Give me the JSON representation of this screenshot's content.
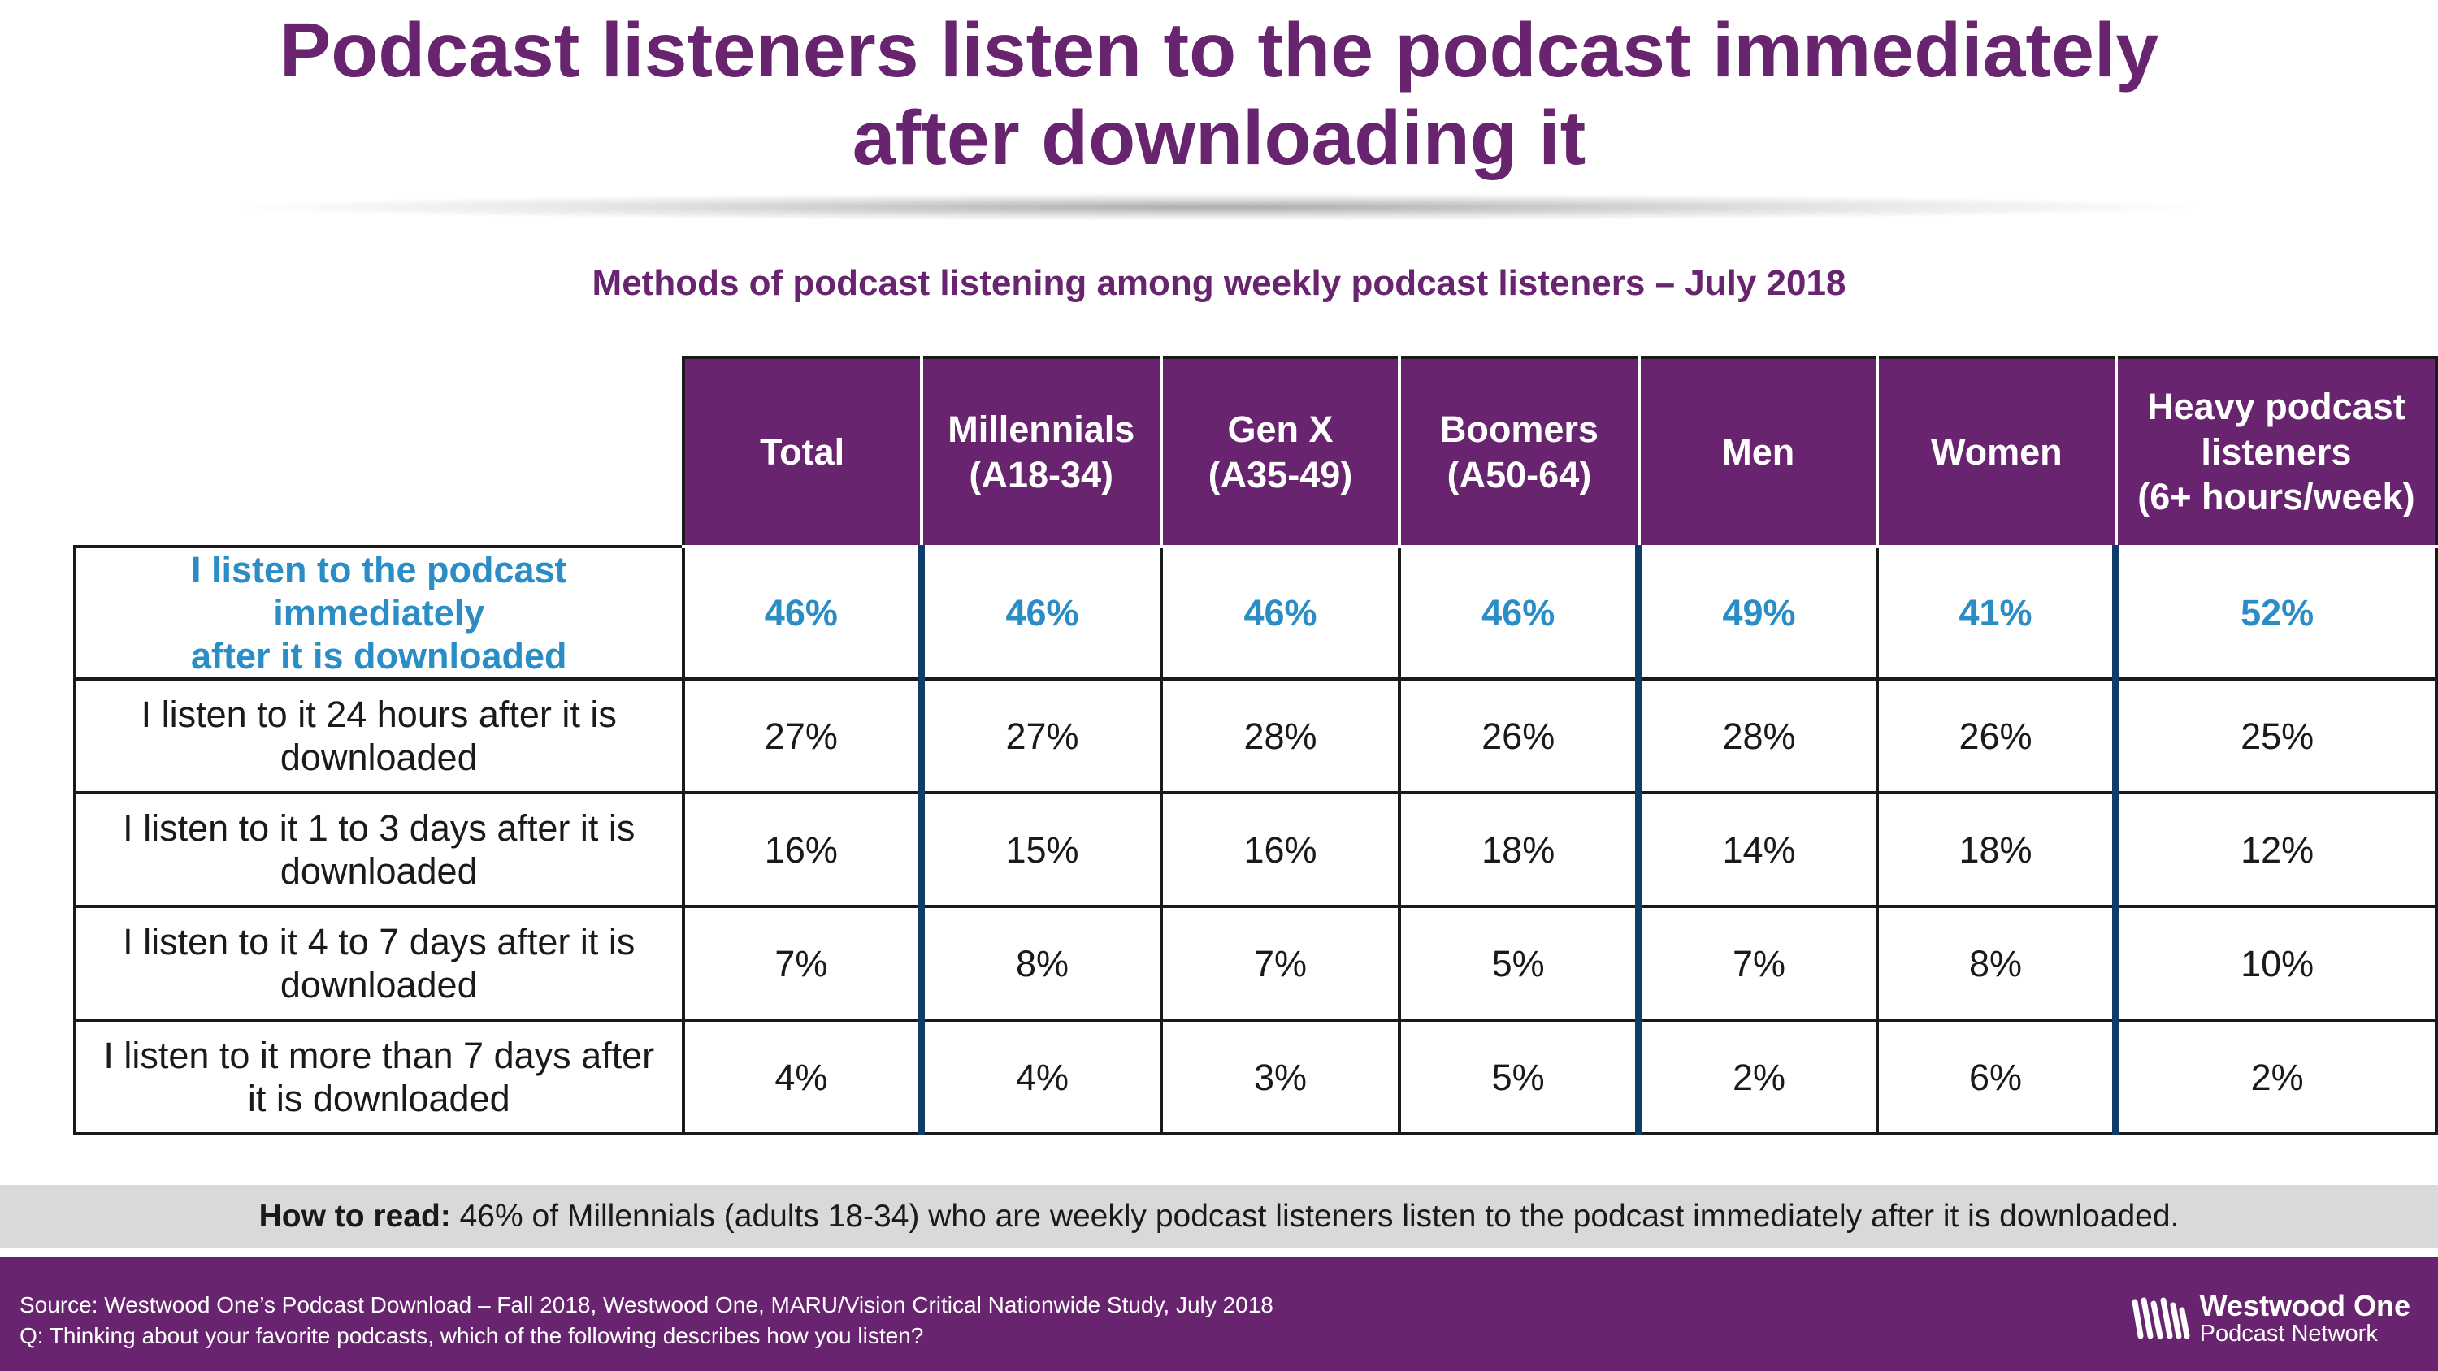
{
  "title_line1": "Podcast listeners listen to the podcast immediately",
  "title_line2": "after downloading it",
  "subtitle": "Methods of podcast listening among weekly podcast listeners – July 2018",
  "table": {
    "columns": [
      [
        "Total"
      ],
      [
        "Millennials",
        "(A18-34)"
      ],
      [
        "Gen X",
        "(A35-49)"
      ],
      [
        "Boomers",
        "(A50-64)"
      ],
      [
        "Men"
      ],
      [
        "Women"
      ],
      [
        "Heavy podcast",
        "listeners",
        "(6+ hours/week)"
      ]
    ],
    "rows": [
      {
        "label": [
          "I listen to the podcast immediately",
          "after it is downloaded"
        ],
        "values": [
          "46%",
          "46%",
          "46%",
          "46%",
          "49%",
          "41%",
          "52%"
        ]
      },
      {
        "label": [
          "I listen to it 24 hours after it is",
          "downloaded"
        ],
        "values": [
          "27%",
          "27%",
          "28%",
          "26%",
          "28%",
          "26%",
          "25%"
        ]
      },
      {
        "label": [
          "I listen to it 1 to 3 days after it is",
          "downloaded"
        ],
        "values": [
          "16%",
          "15%",
          "16%",
          "18%",
          "14%",
          "18%",
          "12%"
        ]
      },
      {
        "label": [
          "I listen to it 4 to 7 days after it is",
          "downloaded"
        ],
        "values": [
          "7%",
          "8%",
          "7%",
          "5%",
          "7%",
          "8%",
          "10%"
        ]
      },
      {
        "label": [
          "I listen to it more than 7 days after",
          "it is downloaded"
        ],
        "values": [
          "4%",
          "4%",
          "3%",
          "5%",
          "2%",
          "6%",
          "2%"
        ]
      }
    ]
  },
  "how_to_read": {
    "label": "How to read:",
    "text": " 46% of Millennials (adults 18-34) who are weekly podcast listeners listen to the podcast immediately after it is downloaded."
  },
  "footer": {
    "source": "Source: Westwood One’s Podcast Download – Fall 2018, Westwood One, MARU/Vision Critical Nationwide Study, July 2018",
    "question": "Q:  Thinking about your favorite podcasts, which of the following describes how you listen?"
  },
  "logo": {
    "name": "Westwood One",
    "sub": "Podcast Network"
  },
  "colors": {
    "purple": "#68246e",
    "highlight_blue": "#2a8dc5",
    "divider_navy": "#0e3d6b",
    "band_gray": "#d9d9d9"
  },
  "chart_data": {
    "type": "table",
    "title": "Methods of podcast listening among weekly podcast listeners – July 2018",
    "columns": [
      "Total",
      "Millennials (A18-34)",
      "Gen X (A35-49)",
      "Boomers (A50-64)",
      "Men",
      "Women",
      "Heavy podcast listeners (6+ hours/week)"
    ],
    "rows": [
      "I listen to the podcast immediately after it is downloaded",
      "I listen to it 24 hours after it is downloaded",
      "I listen to it 1 to 3 days after it is downloaded",
      "I listen to it 4 to 7 days after it is downloaded",
      "I listen to it more than 7 days after it is downloaded"
    ],
    "values": [
      [
        46,
        46,
        46,
        46,
        49,
        41,
        52
      ],
      [
        27,
        27,
        28,
        26,
        28,
        26,
        25
      ],
      [
        16,
        15,
        16,
        18,
        14,
        18,
        12
      ],
      [
        7,
        8,
        7,
        5,
        7,
        8,
        10
      ],
      [
        4,
        4,
        3,
        5,
        2,
        6,
        2
      ]
    ],
    "unit": "%"
  }
}
